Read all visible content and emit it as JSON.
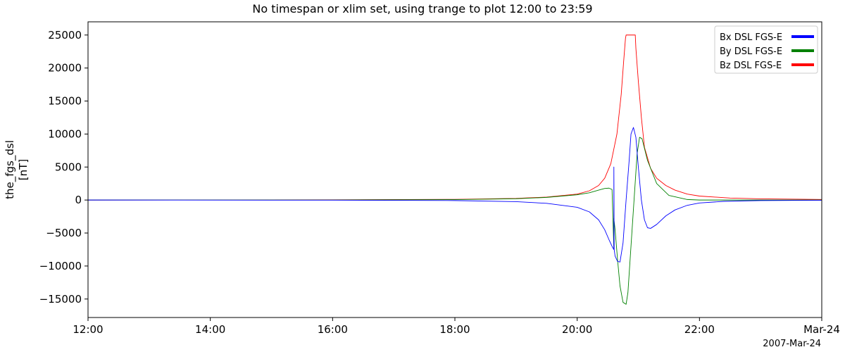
{
  "chart_data": {
    "type": "line",
    "title": "No timespan or xlim set, using trange to plot 12:00 to 23:59",
    "ylabel_lines": [
      "the_fgs_dsl",
      "[nT]"
    ],
    "xlabel_extra": "2007-Mar-24",
    "xlim": [
      12,
      24
    ],
    "ylim": [
      -17800,
      27000
    ],
    "xticks": [
      {
        "value": 12,
        "label": "12:00"
      },
      {
        "value": 14,
        "label": "14:00"
      },
      {
        "value": 16,
        "label": "16:00"
      },
      {
        "value": 18,
        "label": "18:00"
      },
      {
        "value": 20,
        "label": "20:00"
      },
      {
        "value": 22,
        "label": "22:00"
      },
      {
        "value": 24,
        "label": "Mar-24"
      }
    ],
    "yticks": [
      {
        "value": 25000,
        "label": "25000"
      },
      {
        "value": 20000,
        "label": "20000"
      },
      {
        "value": 15000,
        "label": "15000"
      },
      {
        "value": 10000,
        "label": "10000"
      },
      {
        "value": 5000,
        "label": "5000"
      },
      {
        "value": 0,
        "label": "0"
      },
      {
        "value": -5000,
        "label": "−5000"
      },
      {
        "value": -10000,
        "label": "−10000"
      },
      {
        "value": -15000,
        "label": "−15000"
      }
    ],
    "legend_position": "top-right",
    "series": [
      {
        "name": "Bx DSL FGS-E",
        "color": "#0000ff",
        "x": [
          12,
          16,
          18,
          19,
          19.5,
          20,
          20.2,
          20.35,
          20.45,
          20.52,
          20.58,
          20.6,
          20.6,
          20.605,
          20.62,
          20.66,
          20.7,
          20.75,
          20.8,
          20.85,
          20.88,
          20.92,
          20.96,
          21.0,
          21.05,
          21.1,
          21.15,
          21.2,
          21.3,
          21.45,
          21.6,
          21.8,
          22.0,
          22.4,
          23,
          24
        ],
        "values": [
          0,
          -20,
          -80,
          -250,
          -500,
          -1100,
          -1800,
          -3000,
          -4500,
          -6000,
          -7200,
          -7500,
          5000,
          -7500,
          -8500,
          -9300,
          -9400,
          -6500,
          0,
          6000,
          10000,
          11000,
          9500,
          5000,
          0,
          -3000,
          -4200,
          -4300,
          -3700,
          -2400,
          -1500,
          -800,
          -450,
          -200,
          -80,
          -30
        ]
      },
      {
        "name": "By DSL FGS-E",
        "color": "#008000",
        "x": [
          12,
          16,
          18,
          19,
          19.5,
          20,
          20.2,
          20.35,
          20.45,
          20.52,
          20.57,
          20.6,
          20.6,
          20.62,
          20.66,
          20.7,
          20.75,
          20.8,
          20.83,
          20.88,
          20.93,
          20.98,
          21.02,
          21.06,
          21.15,
          21.3,
          21.5,
          21.8,
          22.0,
          22.5,
          23,
          24
        ],
        "values": [
          0,
          10,
          60,
          200,
          400,
          800,
          1100,
          1500,
          1750,
          1800,
          1600,
          -7500,
          -2800,
          -4500,
          -9000,
          -13000,
          -15500,
          -15800,
          -14000,
          -7000,
          0,
          7000,
          9500,
          9300,
          6000,
          2500,
          700,
          80,
          0,
          0,
          0,
          0
        ]
      },
      {
        "name": "Bz DSL FGS-E",
        "color": "#ff0000",
        "x": [
          12,
          14,
          16,
          18,
          19,
          19.5,
          20,
          20.2,
          20.35,
          20.45,
          20.55,
          20.65,
          20.72,
          20.76,
          20.79,
          20.8,
          20.95,
          20.96,
          21.0,
          21.05,
          21.1,
          21.2,
          21.3,
          21.45,
          21.6,
          21.8,
          22.0,
          22.5,
          23,
          24
        ],
        "values": [
          0,
          10,
          30,
          100,
          250,
          450,
          900,
          1400,
          2200,
          3300,
          5500,
          10000,
          16000,
          21000,
          24500,
          25000,
          25000,
          23000,
          18000,
          12500,
          8000,
          4800,
          3300,
          2200,
          1500,
          900,
          600,
          300,
          180,
          90
        ]
      }
    ]
  }
}
